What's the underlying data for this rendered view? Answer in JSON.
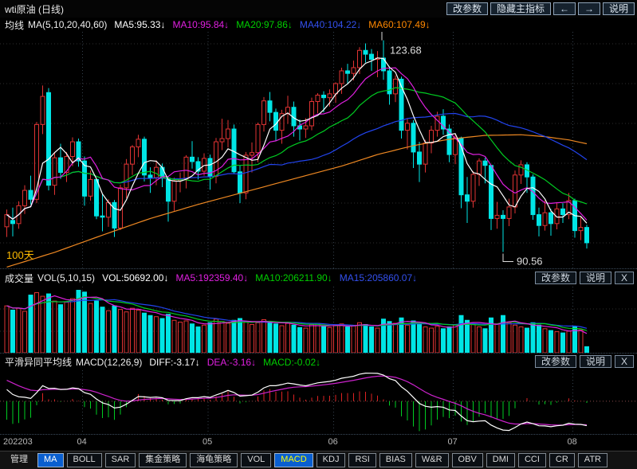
{
  "title_bar": {
    "title": "wti原油 (日线)",
    "buttons": [
      {
        "id": "change-params",
        "label": "改参数"
      },
      {
        "id": "hide-main-indicator",
        "label": "隐藏主指标"
      },
      {
        "id": "prev",
        "label": "←",
        "icon": "left-arrow-icon"
      },
      {
        "id": "next",
        "label": "→",
        "icon": "right-arrow-icon"
      },
      {
        "id": "help",
        "label": "说明"
      }
    ]
  },
  "panes": {
    "main": {
      "indicator_name": "均线",
      "indicator_params": "MA(5,10,20,40,60)",
      "values": [
        {
          "text": "MA5:95.33↓",
          "color": "#ffffff"
        },
        {
          "text": "MA10:95.84↓",
          "color": "#e020e0"
        },
        {
          "text": "MA20:97.86↓",
          "color": "#00d000"
        },
        {
          "text": "MA40:104.22↓",
          "color": "#3350ee"
        },
        {
          "text": "MA60:107.49↓",
          "color": "#ff8800"
        }
      ]
    },
    "volume": {
      "indicator_name": "成交量",
      "indicator_params": "VOL(5,10,15)",
      "values": [
        {
          "text": "VOL:50692.00↓",
          "color": "#ffffff"
        },
        {
          "text": "MA5:192359.40↓",
          "color": "#e020e0"
        },
        {
          "text": "MA10:206211.90↓",
          "color": "#00d000"
        },
        {
          "text": "MA15:205860.07↓",
          "color": "#3350ee"
        }
      ],
      "buttons": [
        {
          "id": "vol-change-params",
          "label": "改参数"
        },
        {
          "id": "vol-help",
          "label": "说明"
        },
        {
          "id": "vol-close",
          "label": "X"
        }
      ]
    },
    "macd": {
      "indicator_name": "平滑异同平均线",
      "indicator_params": "MACD(12,26,9)",
      "values": [
        {
          "text": "DIFF:-3.17↓",
          "color": "#ffffff"
        },
        {
          "text": "DEA:-3.16↓",
          "color": "#e020e0"
        },
        {
          "text": "MACD:-0.02↓",
          "color": "#00d000"
        }
      ],
      "buttons": [
        {
          "id": "macd-change-params",
          "label": "改参数"
        },
        {
          "id": "macd-help",
          "label": "说明"
        },
        {
          "id": "macd-close",
          "label": "X"
        }
      ]
    }
  },
  "axis_labels": [
    {
      "text": "202203",
      "index": 0
    },
    {
      "text": "04",
      "index": 13
    },
    {
      "text": "05",
      "index": 34
    },
    {
      "text": "06",
      "index": 55
    },
    {
      "text": "07",
      "index": 75
    },
    {
      "text": "08",
      "index": 95
    }
  ],
  "tabs": [
    {
      "label": "管理",
      "plain": true
    },
    {
      "label": "MA",
      "active": true
    },
    {
      "label": "BOLL"
    },
    {
      "label": "SAR"
    },
    {
      "label": "集金策略"
    },
    {
      "label": "海龟策略"
    },
    {
      "label": "VOL"
    },
    {
      "label": "MACD",
      "active": true,
      "text_color": "#ffff00"
    },
    {
      "label": "KDJ"
    },
    {
      "label": "RSI"
    },
    {
      "label": "BIAS"
    },
    {
      "label": "W&R"
    },
    {
      "label": "OBV"
    },
    {
      "label": "DMI"
    },
    {
      "label": "CCI"
    },
    {
      "label": "CR"
    },
    {
      "label": "ATR"
    }
  ],
  "chart_data": {
    "type": "candlestick",
    "title": "wti原油 (日线)",
    "price_range": {
      "min": 88,
      "max": 125
    },
    "volume_max": 550000,
    "annotations": {
      "high_label": "123.68",
      "high_index": 63,
      "low_label": "90.56",
      "low_index": 83,
      "left_label": "100天"
    },
    "colors": {
      "up": "#e03333",
      "down": "#00e5e5",
      "ma5": "#ffffff",
      "ma10": "#e020e0",
      "ma20": "#00cc22",
      "ma40": "#2244ee",
      "ma60": "#ee8822",
      "vol_ma5": "#e020e0",
      "vol_ma10": "#00cc22",
      "vol_ma15": "#2244ee",
      "diff": "#ffffff",
      "dea": "#cc22cc",
      "hist_pos": "#dd2222",
      "hist_neg": "#00cc22",
      "grid": "#2e2e2e",
      "vgrid": "#34404c",
      "annotation": "#dddddd",
      "left_label_color": "#ffbb00"
    },
    "candles": [
      [
        94.5,
        97.2,
        92.9,
        96.4
      ],
      [
        95.5,
        97.5,
        93.0,
        95.0
      ],
      [
        95.0,
        98.5,
        94.2,
        97.8
      ],
      [
        97.8,
        101.0,
        96.5,
        100.2
      ],
      [
        100.2,
        102.5,
        98.0,
        98.8
      ],
      [
        98.8,
        110.9,
        98.2,
        110.5
      ],
      [
        110.5,
        116.6,
        109.0,
        114.9
      ],
      [
        115.5,
        116.2,
        100.2,
        101.0
      ],
      [
        101.0,
        106.0,
        99.5,
        105.3
      ],
      [
        105.3,
        107.5,
        102.0,
        103.0
      ],
      [
        103.0,
        106.2,
        101.5,
        105.5
      ],
      [
        105.5,
        108.5,
        104.0,
        107.8
      ],
      [
        107.8,
        108.3,
        103.9,
        104.8
      ],
      [
        104.8,
        105.5,
        97.8,
        99.3
      ],
      [
        99.3,
        103.3,
        98.6,
        101.9
      ],
      [
        101.9,
        102.1,
        95.7,
        96.2
      ],
      [
        96.2,
        99.6,
        93.8,
        96.0
      ],
      [
        96.0,
        98.8,
        94.5,
        98.3
      ],
      [
        98.3,
        98.7,
        92.9,
        94.3
      ],
      [
        94.3,
        101.1,
        94.0,
        100.6
      ],
      [
        100.6,
        105.1,
        99.0,
        104.3
      ],
      [
        104.3,
        107.3,
        102.6,
        107.0
      ],
      [
        107.0,
        108.9,
        105.4,
        108.2
      ],
      [
        108.2,
        108.6,
        101.6,
        102.6
      ],
      [
        102.6,
        103.8,
        99.8,
        102.2
      ],
      [
        102.2,
        104.9,
        101.0,
        103.8
      ],
      [
        103.8,
        104.4,
        100.7,
        102.1
      ],
      [
        102.1,
        102.3,
        95.3,
        98.5
      ],
      [
        98.5,
        102.2,
        97.0,
        101.7
      ],
      [
        101.7,
        103.0,
        99.9,
        102.0
      ],
      [
        102.0,
        105.7,
        100.5,
        105.4
      ],
      [
        105.4,
        107.9,
        103.6,
        104.7
      ],
      [
        104.7,
        105.4,
        101.9,
        103.2
      ],
      [
        103.2,
        106.0,
        102.5,
        105.2
      ],
      [
        105.2,
        105.8,
        100.3,
        102.4
      ],
      [
        102.4,
        108.4,
        101.3,
        107.8
      ],
      [
        107.8,
        111.4,
        106.5,
        108.3
      ],
      [
        108.3,
        111.2,
        106.9,
        109.8
      ],
      [
        109.8,
        110.5,
        102.8,
        103.1
      ],
      [
        103.1,
        104.1,
        98.2,
        99.8
      ],
      [
        99.8,
        106.2,
        98.8,
        105.7
      ],
      [
        105.7,
        107.7,
        103.0,
        106.1
      ],
      [
        106.1,
        110.8,
        104.6,
        110.5
      ],
      [
        110.5,
        114.8,
        109.4,
        114.2
      ],
      [
        114.2,
        115.6,
        111.0,
        112.4
      ],
      [
        112.4,
        113.0,
        107.9,
        109.6
      ],
      [
        109.6,
        112.8,
        107.5,
        112.2
      ],
      [
        112.2,
        115.0,
        110.6,
        113.2
      ],
      [
        113.2,
        114.1,
        108.6,
        110.3
      ],
      [
        110.3,
        111.3,
        108.0,
        109.8
      ],
      [
        109.8,
        111.5,
        108.4,
        110.3
      ],
      [
        110.3,
        114.7,
        109.6,
        114.1
      ],
      [
        114.1,
        115.4,
        112.3,
        115.1
      ],
      [
        115.1,
        115.7,
        112.4,
        114.7
      ],
      [
        114.7,
        116.0,
        113.3,
        115.3
      ],
      [
        115.3,
        117.1,
        113.9,
        116.9
      ],
      [
        116.9,
        119.4,
        115.3,
        118.9
      ],
      [
        118.9,
        120.0,
        116.8,
        118.5
      ],
      [
        118.5,
        120.5,
        117.4,
        119.4
      ],
      [
        119.4,
        122.6,
        118.4,
        122.1
      ],
      [
        122.1,
        123.2,
        120.2,
        121.5
      ],
      [
        121.5,
        122.3,
        118.9,
        120.7
      ],
      [
        120.7,
        122.0,
        117.9,
        120.9
      ],
      [
        120.9,
        123.68,
        117.5,
        118.9
      ],
      [
        118.9,
        119.6,
        113.6,
        115.3
      ],
      [
        115.3,
        118.2,
        114.0,
        117.6
      ],
      [
        117.6,
        118.0,
        108.3,
        109.6
      ],
      [
        109.6,
        111.5,
        106.6,
        110.7
      ],
      [
        110.7,
        111.2,
        103.7,
        106.2
      ],
      [
        106.2,
        107.8,
        101.5,
        104.3
      ],
      [
        104.3,
        108.1,
        103.0,
        107.6
      ],
      [
        107.6,
        110.3,
        106.0,
        109.6
      ],
      [
        109.6,
        112.5,
        108.6,
        111.8
      ],
      [
        111.8,
        112.9,
        108.9,
        109.8
      ],
      [
        109.8,
        110.5,
        104.6,
        105.8
      ],
      [
        105.8,
        108.9,
        104.3,
        108.4
      ],
      [
        108.4,
        108.6,
        97.4,
        99.5
      ],
      [
        99.5,
        102.3,
        95.1,
        98.5
      ],
      [
        98.5,
        103.2,
        97.5,
        102.7
      ],
      [
        102.7,
        105.2,
        100.9,
        104.8
      ],
      [
        104.8,
        105.3,
        101.3,
        104.1
      ],
      [
        104.1,
        104.2,
        94.0,
        95.8
      ],
      [
        95.8,
        98.4,
        94.2,
        96.3
      ],
      [
        96.3,
        97.1,
        90.56,
        95.8
      ],
      [
        95.8,
        98.9,
        94.6,
        97.6
      ],
      [
        97.6,
        103.3,
        96.6,
        102.6
      ],
      [
        102.6,
        104.9,
        101.2,
        104.2
      ],
      [
        104.2,
        104.6,
        99.8,
        102.3
      ],
      [
        102.3,
        102.7,
        95.6,
        96.4
      ],
      [
        96.4,
        97.5,
        93.0,
        94.7
      ],
      [
        94.7,
        98.6,
        93.9,
        96.7
      ],
      [
        96.7,
        97.3,
        93.1,
        95.0
      ],
      [
        95.0,
        98.3,
        94.1,
        97.3
      ],
      [
        97.3,
        98.2,
        95.1,
        96.4
      ],
      [
        96.4,
        99.8,
        95.7,
        98.6
      ],
      [
        98.6,
        98.9,
        92.8,
        93.9
      ],
      [
        93.9,
        96.1,
        92.4,
        94.4
      ],
      [
        94.4,
        94.8,
        91.1,
        92.0
      ]
    ],
    "volumes": [
      390000,
      355000,
      370000,
      345000,
      480000,
      500000,
      470000,
      490000,
      430000,
      400000,
      420000,
      450000,
      520000,
      505000,
      410000,
      430000,
      380000,
      350000,
      390000,
      360000,
      340000,
      370000,
      355000,
      330000,
      310000,
      300000,
      285000,
      320000,
      270000,
      255000,
      265000,
      240000,
      215000,
      230000,
      250000,
      280000,
      260000,
      245000,
      270000,
      285000,
      260000,
      235000,
      250000,
      275000,
      255000,
      240000,
      225000,
      245000,
      230000,
      210000,
      205000,
      235000,
      245000,
      220000,
      210000,
      225000,
      240000,
      215000,
      225000,
      250000,
      235000,
      215000,
      205000,
      280000,
      260000,
      245000,
      290000,
      230000,
      265000,
      245000,
      215000,
      205000,
      220000,
      200000,
      215000,
      230000,
      310000,
      270000,
      235000,
      215000,
      200000,
      290000,
      240000,
      310000,
      250000,
      230000,
      215000,
      205000,
      250000,
      230000,
      200000,
      185000,
      175000,
      165000,
      180000,
      215000,
      190000,
      50692
    ],
    "ma60_keypoints": [
      [
        0,
        88.2
      ],
      [
        8,
        90.5
      ],
      [
        16,
        93.2
      ],
      [
        24,
        95.8
      ],
      [
        32,
        98.0
      ],
      [
        40,
        100.0
      ],
      [
        48,
        102.0
      ],
      [
        56,
        104.0
      ],
      [
        62,
        105.8
      ],
      [
        68,
        107.2
      ],
      [
        74,
        108.2
      ],
      [
        80,
        108.8
      ],
      [
        86,
        108.9
      ],
      [
        90,
        108.6
      ],
      [
        94,
        108.1
      ],
      [
        97,
        107.5
      ]
    ]
  }
}
